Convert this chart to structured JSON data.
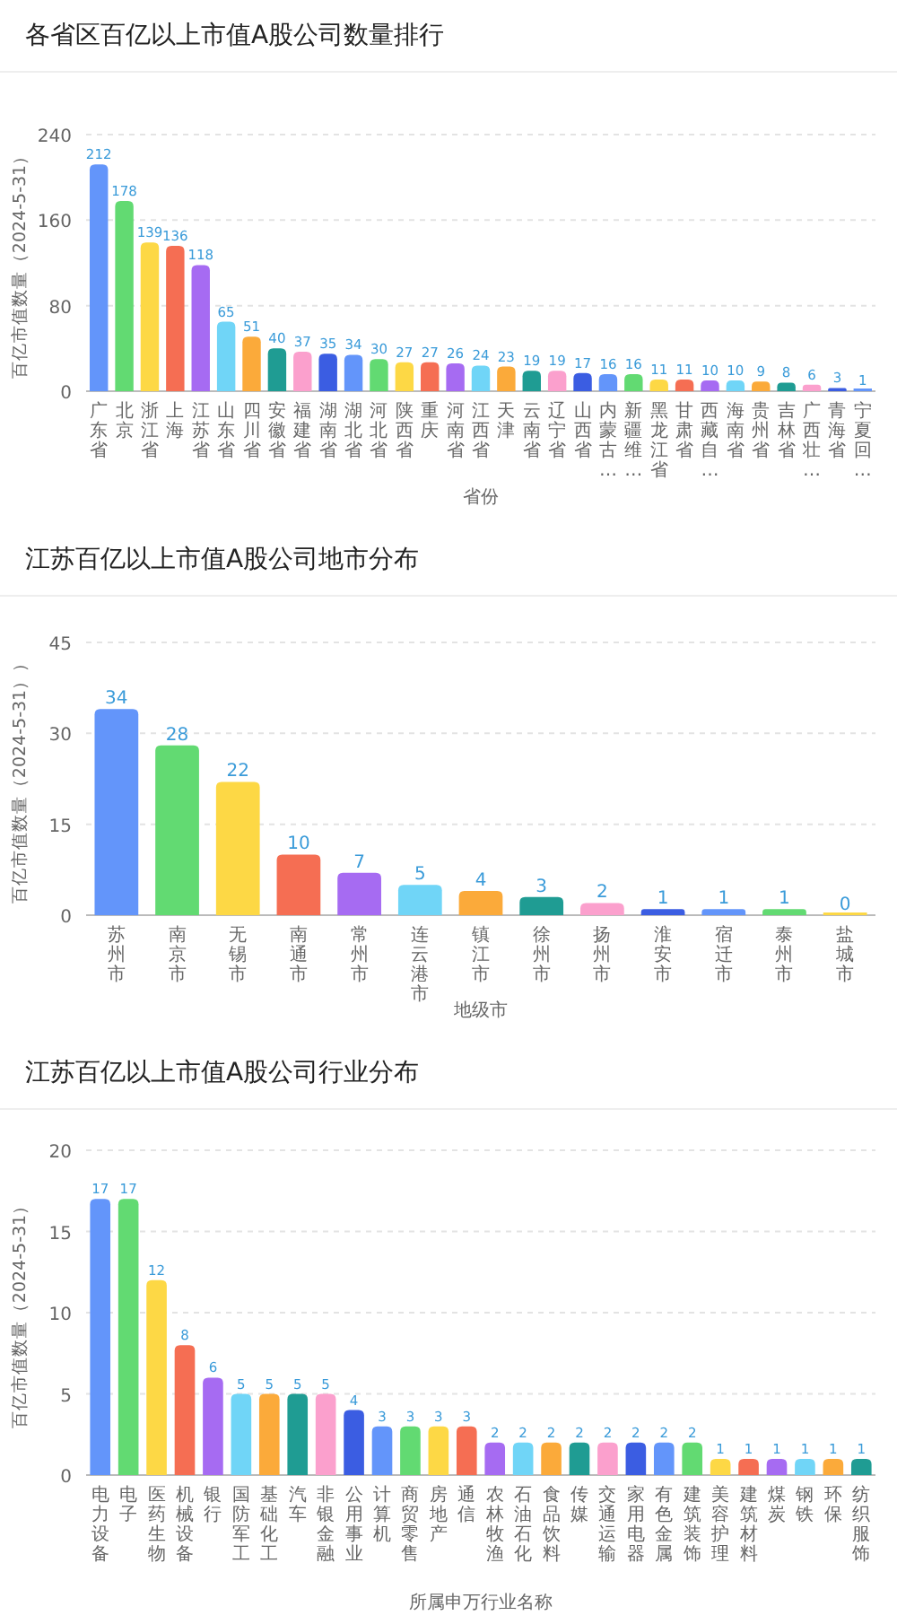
{
  "chart_data": [
    {
      "type": "bar",
      "title": "各省区百亿以上市值A股公司数量排行",
      "xlabel": "省份",
      "ylabel": "百亿市值数量（2024-5-31）",
      "categories": [
        "广东省",
        "北京",
        "浙江省",
        "上海",
        "江苏省",
        "山东省",
        "四川省",
        "安徽省",
        "福建省",
        "湖南省",
        "湖北省",
        "河北省",
        "陕西省",
        "重庆",
        "河南省",
        "江西省",
        "天津",
        "云南省",
        "辽宁省",
        "山西省",
        "内蒙古…",
        "新疆维…",
        "黑龙江省",
        "甘肃省",
        "西藏自…",
        "海南省",
        "贵州省",
        "吉林省",
        "广西壮…",
        "青海省",
        "宁夏回…"
      ],
      "values": [
        212,
        178,
        139,
        136,
        118,
        65,
        51,
        40,
        37,
        35,
        34,
        30,
        27,
        27,
        26,
        24,
        23,
        19,
        19,
        17,
        16,
        16,
        11,
        11,
        10,
        10,
        9,
        8,
        6,
        3,
        1
      ],
      "colors": [
        "#6395fa",
        "#62da72",
        "#fdd845",
        "#f56e53",
        "#a66bf2",
        "#70d5f7",
        "#fbaa3a",
        "#1f9c93",
        "#fba0cd",
        "#3b5de2",
        "#6395fa",
        "#62da72",
        "#fdd845",
        "#f56e53",
        "#a66bf2",
        "#70d5f7",
        "#fbaa3a",
        "#1f9c93",
        "#fba0cd",
        "#3b5de2",
        "#6395fa",
        "#62da72",
        "#fdd845",
        "#f56e53",
        "#a66bf2",
        "#70d5f7",
        "#fbaa3a",
        "#1f9c93",
        "#fba0cd",
        "#3b5de2",
        "#6395fa"
      ],
      "ylim": [
        0,
        240
      ],
      "yticks": [
        0,
        80,
        160,
        240
      ],
      "grid": "y",
      "data_labels": true
    },
    {
      "type": "bar",
      "title": "江苏百亿以上市值A股公司地市分布",
      "xlabel": "地级市",
      "ylabel": "百亿市值数量（2024-5-31））",
      "categories": [
        "苏州市",
        "南京市",
        "无锡市",
        "南通市",
        "常州市",
        "连云港市",
        "镇江市",
        "徐州市",
        "扬州市",
        "淮安市",
        "宿迁市",
        "泰州市",
        "盐城市"
      ],
      "values": [
        34,
        28,
        22,
        10,
        7,
        5,
        4,
        3,
        2,
        1,
        1,
        1,
        0
      ],
      "colors": [
        "#6395fa",
        "#62da72",
        "#fdd845",
        "#f56e53",
        "#a66bf2",
        "#70d5f7",
        "#fbaa3a",
        "#1f9c93",
        "#fba0cd",
        "#3b5de2",
        "#6395fa",
        "#62da72",
        "#fdd845"
      ],
      "ylim": [
        0,
        45
      ],
      "yticks": [
        0,
        15,
        30,
        45
      ],
      "grid": "y",
      "data_labels": true
    },
    {
      "type": "bar",
      "title": "江苏百亿以上市值A股公司行业分布",
      "xlabel": "所属申万行业名称",
      "ylabel": "百亿市值数量（2024-5-31）",
      "categories": [
        "电力设备",
        "电子",
        "医药生物",
        "机械设备",
        "银行",
        "国防军工",
        "基础化工",
        "汽车",
        "非银金融",
        "公用事业",
        "计算机",
        "商贸零售",
        "房地产",
        "通信",
        "农林牧渔",
        "石油石化",
        "食品饮料",
        "传媒",
        "交通运输",
        "家用电器",
        "有色金属",
        "建筑装饰",
        "美容护理",
        "建筑材料",
        "煤炭",
        "钢铁",
        "环保",
        "纺织服饰"
      ],
      "values": [
        17,
        17,
        12,
        8,
        6,
        5,
        5,
        5,
        5,
        4,
        3,
        3,
        3,
        3,
        2,
        2,
        2,
        2,
        2,
        2,
        2,
        2,
        1,
        1,
        1,
        1,
        1,
        1
      ],
      "colors": [
        "#6395fa",
        "#62da72",
        "#fdd845",
        "#f56e53",
        "#a66bf2",
        "#70d5f7",
        "#fbaa3a",
        "#1f9c93",
        "#fba0cd",
        "#3b5de2",
        "#6395fa",
        "#62da72",
        "#fdd845",
        "#f56e53",
        "#a66bf2",
        "#70d5f7",
        "#fbaa3a",
        "#1f9c93",
        "#fba0cd",
        "#3b5de2",
        "#6395fa",
        "#62da72",
        "#fdd845",
        "#f56e53",
        "#a66bf2",
        "#70d5f7",
        "#fbaa3a",
        "#1f9c93"
      ],
      "ylim": [
        0,
        20
      ],
      "yticks": [
        0,
        5,
        10,
        15,
        20
      ],
      "grid": "y",
      "data_labels": true
    }
  ]
}
